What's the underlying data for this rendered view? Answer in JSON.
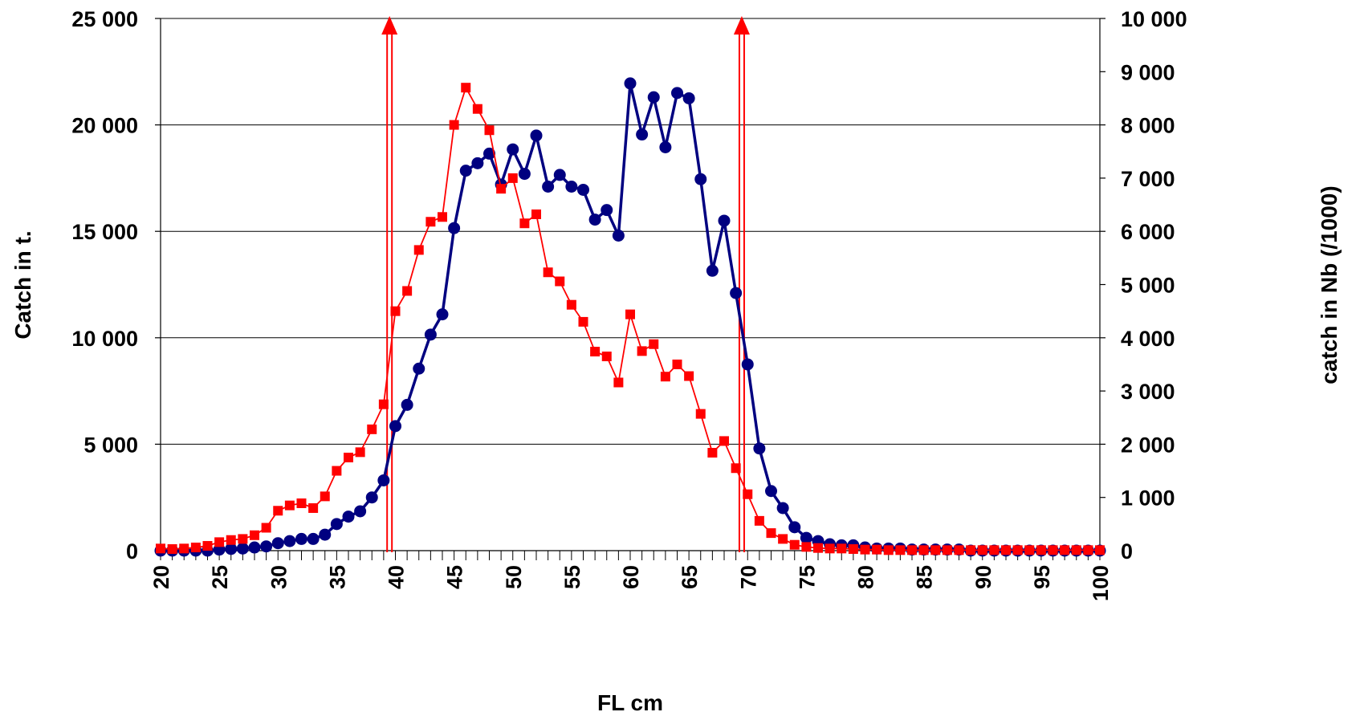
{
  "chart_data": {
    "type": "line",
    "xlabel": "FL cm",
    "ylabel_left": "Catch in t.",
    "ylabel_right": "catch in Nb (/1000)",
    "xlim": [
      20,
      100
    ],
    "ylim_left": [
      0,
      25000
    ],
    "ylim_right": [
      0,
      10000
    ],
    "x_tick_labels": [
      "20",
      "25",
      "30",
      "35",
      "40",
      "45",
      "50",
      "55",
      "60",
      "65",
      "70",
      "75",
      "80",
      "85",
      "90",
      "95",
      "100"
    ],
    "y_left_tick_labels": [
      "0",
      "5 000",
      "10 000",
      "15 000",
      "20 000",
      "25 000"
    ],
    "y_right_tick_labels": [
      "0",
      "1 000",
      "2 000",
      "3 000",
      "4 000",
      "5 000",
      "6 000",
      "7 000",
      "8 000",
      "9 000",
      "10 000"
    ],
    "grid": true,
    "x": [
      20,
      21,
      22,
      23,
      24,
      25,
      26,
      27,
      28,
      29,
      30,
      31,
      32,
      33,
      34,
      35,
      36,
      37,
      38,
      39,
      40,
      41,
      42,
      43,
      44,
      45,
      46,
      47,
      48,
      49,
      50,
      51,
      52,
      53,
      54,
      55,
      56,
      57,
      58,
      59,
      60,
      61,
      62,
      63,
      64,
      65,
      66,
      67,
      68,
      69,
      70,
      71,
      72,
      73,
      74,
      75,
      76,
      77,
      78,
      79,
      80,
      81,
      82,
      83,
      84,
      85,
      86,
      87,
      88,
      89,
      90,
      91,
      92,
      93,
      94,
      95,
      96,
      97,
      98,
      99,
      100
    ],
    "series": [
      {
        "axis": "left",
        "color": "#000080",
        "marker": "circle",
        "values": [
          0,
          0,
          0,
          0,
          0,
          50,
          80,
          100,
          150,
          200,
          350,
          450,
          550,
          550,
          750,
          1250,
          1600,
          1850,
          2500,
          3300,
          5850,
          6850,
          8550,
          10150,
          11100,
          15150,
          17850,
          18200,
          18650,
          17200,
          18850,
          17700,
          19500,
          17100,
          17650,
          17100,
          16950,
          15550,
          16000,
          14800,
          21950,
          19550,
          21300,
          18950,
          21500,
          21250,
          17450,
          13150,
          15500,
          12100,
          8750,
          4800,
          2800,
          2000,
          1100,
          600,
          450,
          300,
          250,
          250,
          150,
          100,
          100,
          100,
          50,
          50,
          50,
          50,
          50,
          0,
          0,
          0,
          0,
          0,
          0,
          0,
          0,
          0,
          0,
          0,
          0
        ]
      },
      {
        "axis": "right",
        "color": "#ff0000",
        "marker": "square",
        "values": [
          40,
          30,
          40,
          60,
          90,
          160,
          200,
          220,
          290,
          430,
          750,
          850,
          890,
          800,
          1020,
          1500,
          1750,
          1850,
          2280,
          2750,
          4500,
          4880,
          5650,
          6180,
          6270,
          8000,
          8700,
          8300,
          7900,
          6800,
          7000,
          6150,
          6320,
          5230,
          5060,
          4620,
          4300,
          3740,
          3650,
          3160,
          4440,
          3750,
          3880,
          3270,
          3500,
          3280,
          2570,
          1840,
          2060,
          1550,
          1060,
          560,
          330,
          220,
          110,
          70,
          50,
          40,
          40,
          30,
          20,
          20,
          10,
          10,
          10,
          10,
          10,
          10,
          10,
          10,
          10,
          10,
          10,
          10,
          10,
          10,
          10,
          10,
          10,
          10,
          10
        ]
      }
    ],
    "markers": [
      {
        "x": 39.5,
        "color": "#ff0000",
        "shape": "double-line-arrow-up"
      },
      {
        "x": 69.5,
        "color": "#ff0000",
        "shape": "double-line-arrow-up"
      }
    ]
  }
}
